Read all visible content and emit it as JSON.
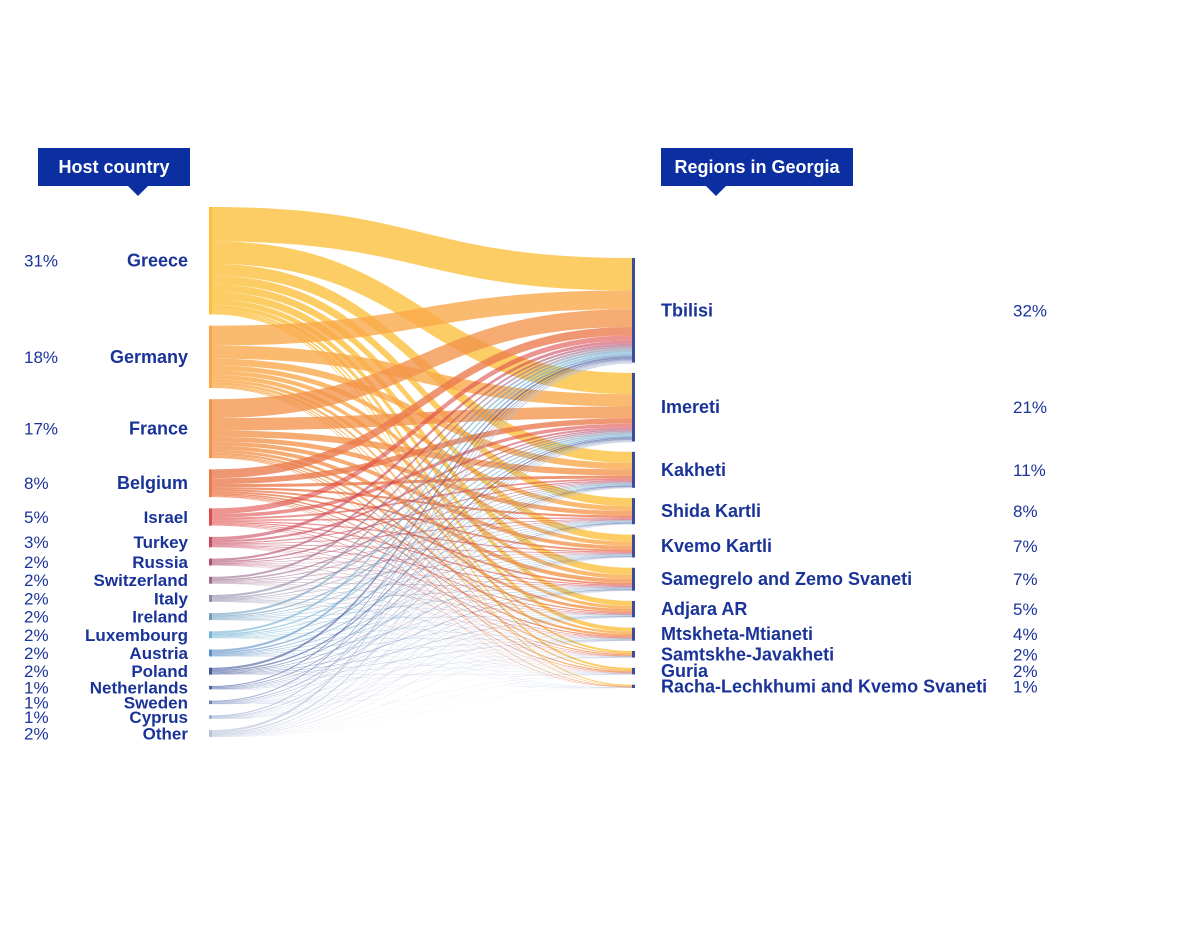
{
  "headers": {
    "left": "Host country",
    "right": "Regions in Georgia"
  },
  "chart_data": {
    "type": "sankey",
    "title": "",
    "sources": [
      {
        "name": "Greece",
        "percent_label": "31%",
        "value": 31
      },
      {
        "name": "Germany",
        "percent_label": "18%",
        "value": 18
      },
      {
        "name": "France",
        "percent_label": "17%",
        "value": 17
      },
      {
        "name": "Belgium",
        "percent_label": "8%",
        "value": 8
      },
      {
        "name": "Israel",
        "percent_label": "5%",
        "value": 5
      },
      {
        "name": "Turkey",
        "percent_label": "3%",
        "value": 3
      },
      {
        "name": "Russia",
        "percent_label": "2%",
        "value": 2
      },
      {
        "name": "Switzerland",
        "percent_label": "2%",
        "value": 2
      },
      {
        "name": "Italy",
        "percent_label": "2%",
        "value": 2
      },
      {
        "name": "Ireland",
        "percent_label": "2%",
        "value": 2
      },
      {
        "name": "Luxembourg",
        "percent_label": "2%",
        "value": 2
      },
      {
        "name": "Austria",
        "percent_label": "2%",
        "value": 2
      },
      {
        "name": "Poland",
        "percent_label": "2%",
        "value": 2
      },
      {
        "name": "Netherlands",
        "percent_label": "1%",
        "value": 1
      },
      {
        "name": "Sweden",
        "percent_label": "1%",
        "value": 1
      },
      {
        "name": "Cyprus",
        "percent_label": "1%",
        "value": 1
      },
      {
        "name": "Other",
        "percent_label": "2%",
        "value": 2
      }
    ],
    "targets": [
      {
        "name": "Tbilisi",
        "percent_label": "32%",
        "value": 32
      },
      {
        "name": "Imereti",
        "percent_label": "21%",
        "value": 21
      },
      {
        "name": "Kakheti",
        "percent_label": "11%",
        "value": 11
      },
      {
        "name": "Shida Kartli",
        "percent_label": "8%",
        "value": 8
      },
      {
        "name": "Kvemo Kartli",
        "percent_label": "7%",
        "value": 7
      },
      {
        "name": "Samegrelo and Zemo Svaneti",
        "percent_label": "7%",
        "value": 7
      },
      {
        "name": "Adjara AR",
        "percent_label": "5%",
        "value": 5
      },
      {
        "name": "Mtskheta-Mtianeti",
        "percent_label": "4%",
        "value": 4
      },
      {
        "name": "Samtskhe-Javakheti",
        "percent_label": "2%",
        "value": 2
      },
      {
        "name": "Guria",
        "percent_label": "2%",
        "value": 2
      },
      {
        "name": "Racha-Lechkhumi and Kvemo Svaneti",
        "percent_label": "1%",
        "value": 1
      }
    ],
    "source_colors": [
      "#fdbf3a",
      "#f8a849",
      "#f2934a",
      "#ea7a4b",
      "#dd4c4a",
      "#c9485c",
      "#b04f70",
      "#9d6a8c",
      "#8c8aa6",
      "#6f9ec0",
      "#72b3d2",
      "#5b8fc6",
      "#44579a",
      "#4c63a6",
      "#6c82b8",
      "#9aa9cf",
      "#b8c0d8"
    ],
    "node_bar_color": "#3e4a9b"
  }
}
